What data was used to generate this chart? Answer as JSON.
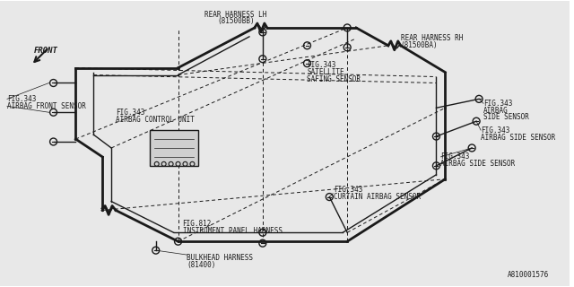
{
  "bg_color": "#e8e8e8",
  "line_color": "#1a1a1a",
  "text_color": "#1a1a1a",
  "title_ref": "A810001576",
  "labels": {
    "bulkhead_harness": [
      "BULKHEAD HARNESS",
      "(81400)"
    ],
    "fig812": [
      "FIG.812",
      "INSTRUMENT PANEL HARNESS"
    ],
    "airbag_front": [
      "FIG.343",
      "AIRBAG FRONT SENSOR"
    ],
    "curtain_airbag": [
      "FIG.343",
      "CURTAIN AIRBAG SENSOR"
    ],
    "airbag_side1": [
      "FIG.343",
      "AIRBAG SIDE SENSOR"
    ],
    "airbag_side2": [
      "FIG.343",
      "AIRBAG SIDE SENSOR"
    ],
    "airbag_side3": [
      "FIG.343",
      "AIRBAG",
      "SIDE SENSOR"
    ],
    "airbag_control": [
      "FIG.343",
      "AIRBAG CONTROL UNIT"
    ],
    "satellite": [
      "FIG.343",
      "SATELLITE",
      "SAFING SENSOR"
    ],
    "rear_lh": [
      "REAR HARNESS LH",
      "(81500BB)"
    ],
    "rear_rh": [
      "REAR HARNESS RH",
      "(81500BA)"
    ],
    "front_arrow": "FRONT"
  },
  "font_size": 5.5
}
